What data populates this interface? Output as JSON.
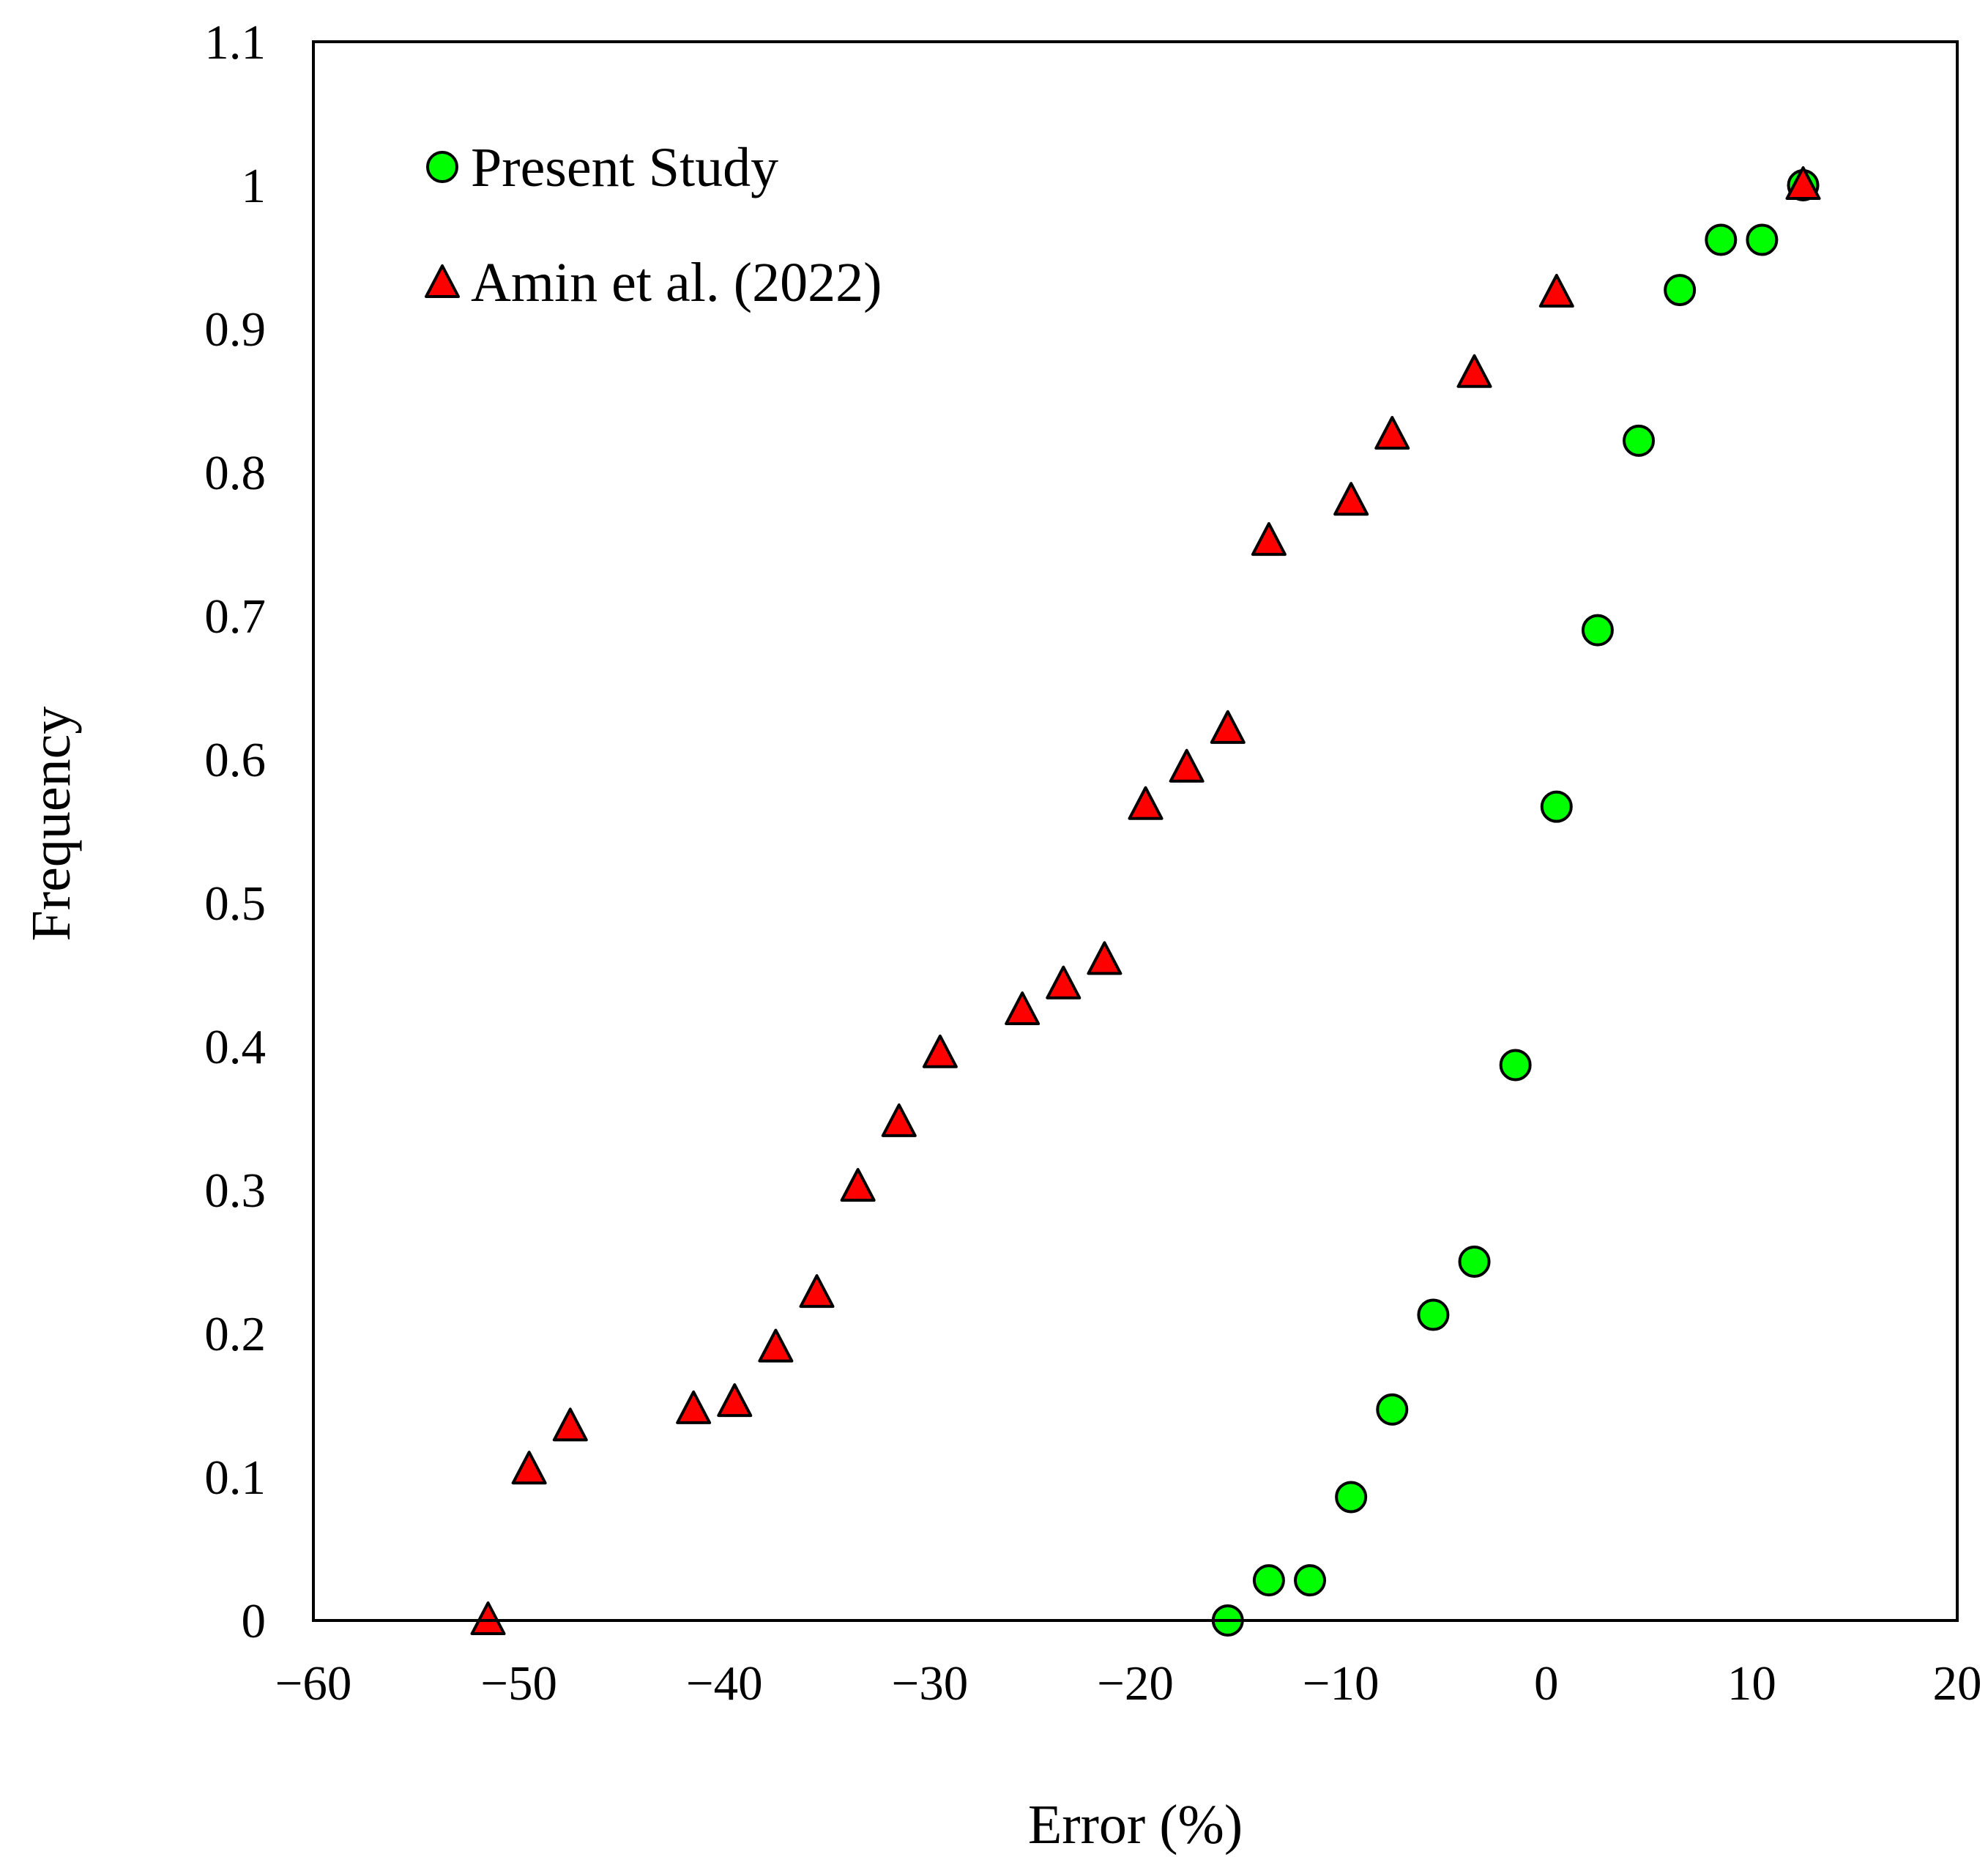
{
  "chart_data": {
    "type": "scatter",
    "title": "",
    "xlabel": "Error (%)",
    "ylabel": "Frequency",
    "xlim": [
      -60,
      20
    ],
    "ylim": [
      0,
      1.1
    ],
    "x_ticks": [
      -60,
      -50,
      -40,
      -30,
      -20,
      -10,
      0,
      10,
      20
    ],
    "x_tick_labels": [
      "−60",
      "−50",
      "−40",
      "−30",
      "−20",
      "−10",
      "0",
      "10",
      "20"
    ],
    "y_ticks": [
      0,
      0.1,
      0.2,
      0.3,
      0.4,
      0.5,
      0.6,
      0.7,
      0.8,
      0.9,
      1,
      1.1
    ],
    "y_tick_labels": [
      "0",
      "0.1",
      "0.2",
      "0.3",
      "0.4",
      "0.5",
      "0.6",
      "0.7",
      "0.8",
      "0.9",
      "1",
      "1.1"
    ],
    "grid": false,
    "legend_position": "top-left",
    "series": [
      {
        "name": "Present Study",
        "marker": "circle",
        "color": "#00ff00",
        "points": [
          [
            -15.5,
            0.0
          ],
          [
            -13.5,
            0.028
          ],
          [
            -11.5,
            0.028
          ],
          [
            -9.5,
            0.086
          ],
          [
            -7.5,
            0.147
          ],
          [
            -5.5,
            0.213
          ],
          [
            -3.5,
            0.25
          ],
          [
            -1.5,
            0.387
          ],
          [
            0.5,
            0.567
          ],
          [
            2.5,
            0.69
          ],
          [
            4.5,
            0.822
          ],
          [
            6.5,
            0.927
          ],
          [
            8.5,
            0.962
          ],
          [
            10.5,
            0.962
          ],
          [
            12.5,
            1.0
          ]
        ]
      },
      {
        "name": "Amin et al. (2022)",
        "marker": "triangle",
        "color": "#ff0000",
        "points": [
          [
            -51.5,
            0.0
          ],
          [
            -49.5,
            0.105
          ],
          [
            -47.5,
            0.135
          ],
          [
            -41.5,
            0.147
          ],
          [
            -39.5,
            0.152
          ],
          [
            -37.5,
            0.19
          ],
          [
            -35.5,
            0.228
          ],
          [
            -33.5,
            0.302
          ],
          [
            -31.5,
            0.347
          ],
          [
            -29.5,
            0.395
          ],
          [
            -25.5,
            0.425
          ],
          [
            -23.5,
            0.443
          ],
          [
            -21.5,
            0.46
          ],
          [
            -19.5,
            0.568
          ],
          [
            -17.5,
            0.594
          ],
          [
            -15.5,
            0.621
          ],
          [
            -13.5,
            0.752
          ],
          [
            -9.5,
            0.78
          ],
          [
            -7.5,
            0.826
          ],
          [
            -3.5,
            0.869
          ],
          [
            0.5,
            0.925
          ],
          [
            12.5,
            1.0
          ]
        ]
      }
    ]
  }
}
